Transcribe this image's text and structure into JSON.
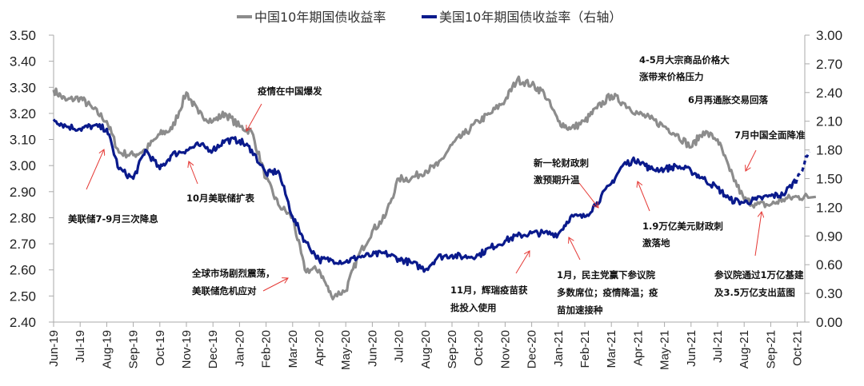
{
  "chart_data": {
    "type": "line",
    "title": "",
    "grid": false,
    "legend_placement": "top",
    "left_axis": {
      "ylim": [
        2.4,
        3.5
      ],
      "ticks": [
        "3.50",
        "3.40",
        "3.30",
        "3.20",
        "3.10",
        "3.00",
        "2.90",
        "2.80",
        "2.70",
        "2.60",
        "2.50",
        "2.40"
      ]
    },
    "right_axis": {
      "ylim": [
        0.0,
        3.0
      ],
      "ticks": [
        "3.00",
        "2.70",
        "2.40",
        "2.10",
        "1.80",
        "1.50",
        "1.20",
        "0.90",
        "0.60",
        "0.30",
        "0.00"
      ]
    },
    "x_ticks": [
      "Jun-19",
      "Jul-19",
      "Aug-19",
      "Sep-19",
      "Oct-19",
      "Nov-19",
      "Dec-19",
      "Jan-20",
      "Feb-20",
      "Mar-20",
      "Apr-20",
      "May-20",
      "Jun-20",
      "Jul-20",
      "Aug-20",
      "Sep-20",
      "Oct-20",
      "Nov-20",
      "Dec-20",
      "Jan-21",
      "Feb-21",
      "Mar-21",
      "Apr-21",
      "May-21",
      "Jun-21",
      "Jul-21",
      "Aug-21",
      "Sep-21",
      "Oct-21"
    ],
    "x": [
      "2019-06-01",
      "2019-06-15",
      "2019-07-01",
      "2019-07-15",
      "2019-08-01",
      "2019-08-15",
      "2019-09-01",
      "2019-09-15",
      "2019-10-01",
      "2019-10-15",
      "2019-11-01",
      "2019-11-15",
      "2019-12-01",
      "2019-12-15",
      "2020-01-01",
      "2020-01-15",
      "2020-02-01",
      "2020-02-15",
      "2020-03-01",
      "2020-03-15",
      "2020-04-01",
      "2020-04-15",
      "2020-05-01",
      "2020-05-15",
      "2020-06-01",
      "2020-06-15",
      "2020-07-01",
      "2020-07-15",
      "2020-08-01",
      "2020-08-15",
      "2020-09-01",
      "2020-09-15",
      "2020-10-01",
      "2020-10-15",
      "2020-11-01",
      "2020-11-15",
      "2020-12-01",
      "2020-12-15",
      "2021-01-01",
      "2021-01-15",
      "2021-02-01",
      "2021-02-15",
      "2021-03-01",
      "2021-03-15",
      "2021-04-01",
      "2021-04-15",
      "2021-05-01",
      "2021-05-15",
      "2021-06-01",
      "2021-06-15",
      "2021-07-01",
      "2021-07-15",
      "2021-08-01",
      "2021-08-15",
      "2021-09-01",
      "2021-09-15",
      "2021-10-01",
      "2021-10-15"
    ],
    "series": [
      {
        "name": "中国10年期国债收益率",
        "axis": "left",
        "color": "#8c8c8c",
        "values": [
          3.29,
          3.25,
          3.26,
          3.22,
          3.17,
          3.05,
          3.04,
          3.06,
          3.12,
          3.14,
          3.28,
          3.2,
          3.17,
          3.2,
          3.15,
          3.13,
          2.95,
          2.85,
          2.8,
          2.6,
          2.6,
          2.5,
          2.52,
          2.65,
          2.75,
          2.8,
          2.95,
          2.95,
          2.98,
          3.0,
          3.08,
          3.12,
          3.17,
          3.2,
          3.25,
          3.33,
          3.31,
          3.28,
          3.17,
          3.14,
          3.17,
          3.22,
          3.27,
          3.24,
          3.2,
          3.18,
          3.15,
          3.12,
          3.07,
          3.13,
          3.1,
          2.98,
          2.87,
          2.85,
          2.85,
          2.87,
          2.88,
          2.88
        ]
      },
      {
        "name": "美国10年期国债收益率（右轴）",
        "axis": "right",
        "color": "#0a1a8c",
        "values": [
          2.12,
          2.05,
          2.02,
          2.05,
          2.02,
          1.6,
          1.5,
          1.8,
          1.6,
          1.75,
          1.8,
          1.85,
          1.8,
          1.9,
          1.9,
          1.8,
          1.55,
          1.58,
          1.1,
          0.85,
          0.65,
          0.65,
          0.63,
          0.68,
          0.7,
          0.72,
          0.66,
          0.62,
          0.55,
          0.68,
          0.7,
          0.68,
          0.7,
          0.78,
          0.85,
          0.9,
          0.93,
          0.93,
          0.92,
          1.1,
          1.1,
          1.25,
          1.45,
          1.65,
          1.7,
          1.6,
          1.6,
          1.63,
          1.58,
          1.5,
          1.4,
          1.28,
          1.25,
          1.28,
          1.32,
          1.33,
          1.5,
          1.78
        ]
      }
    ],
    "annotations": [
      "美联储7-9月三次降息",
      "10月美联储扩表",
      "疫情在中国爆发",
      "全球市场剧烈震荡，",
      "美联储危机应对",
      "11月，辉瑞疫苗获",
      "批投入使用",
      "新一轮财政刺",
      "激预期升温",
      "1月，民主党赢下参议院",
      "多数席位；疫情降温；疫",
      "苗加速接种",
      "4-5月大宗商品价格大",
      "涨带来价格压力",
      "1.9万亿美元财政刺",
      "激落地",
      "6月再通胀交易回落",
      "7月中国全面降准",
      "参议院通过1万亿基建",
      "及3.5万亿支出蓝图"
    ]
  }
}
